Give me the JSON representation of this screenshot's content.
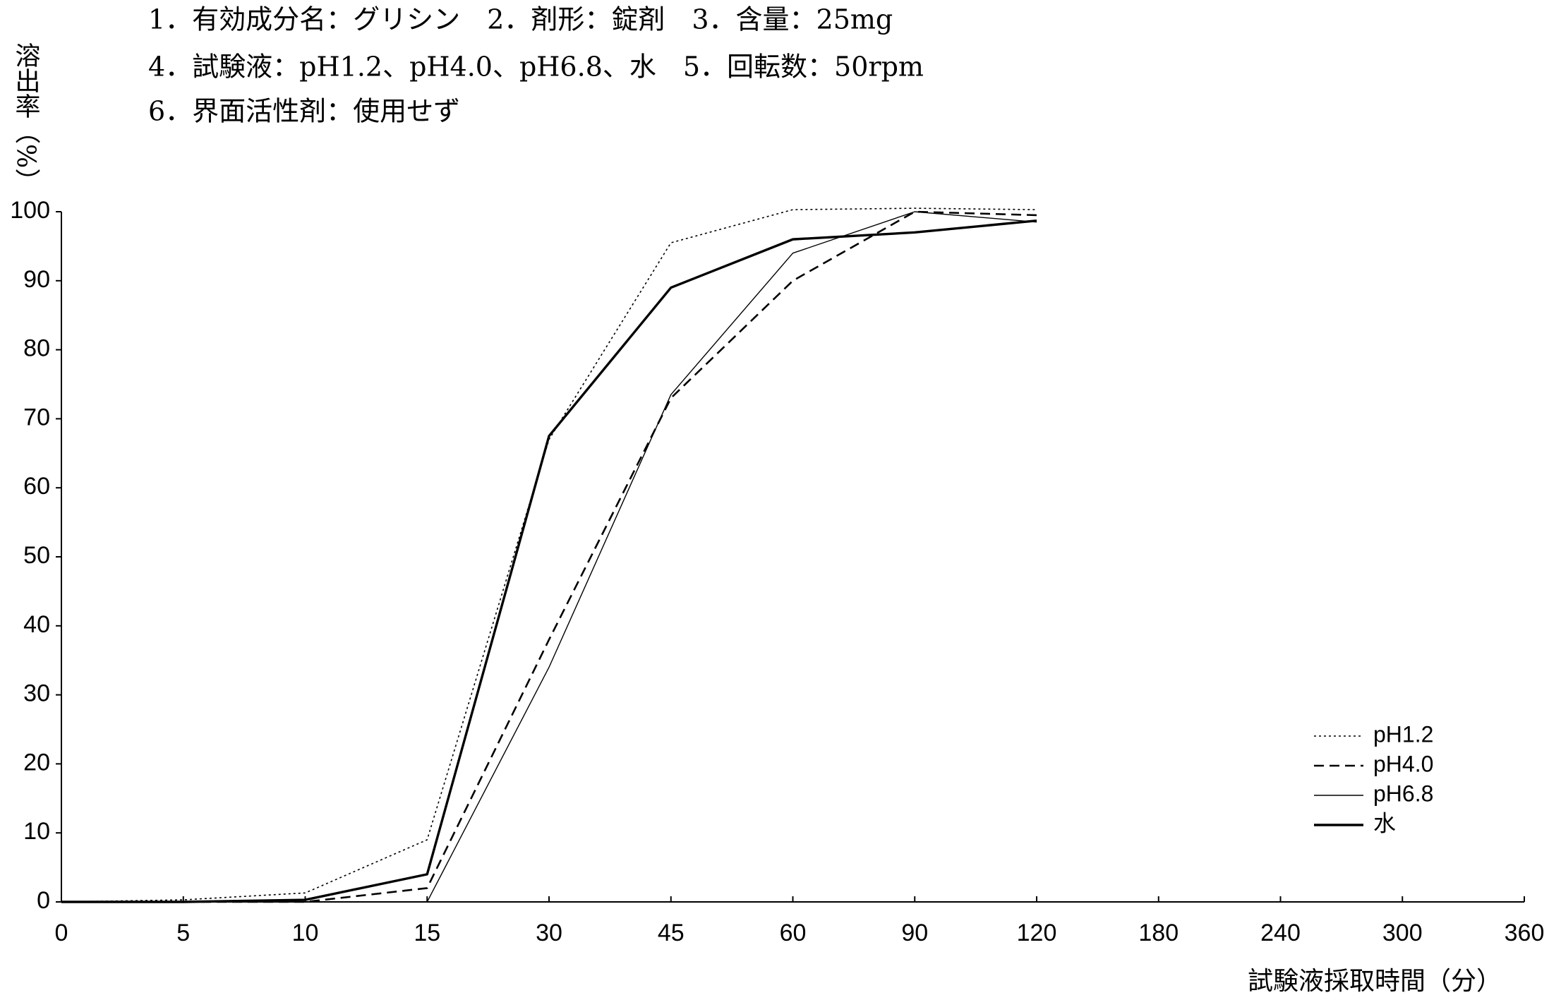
{
  "chart_data": {
    "type": "line",
    "notes": [
      "1．有効成分名：グリシン　2．剤形：錠剤　3．含量：25mg",
      "4．試験液：pH1.2、pH4.0、pH6.8、水　5．回転数：50rpm",
      "6．界面活性剤：使用せず"
    ],
    "y_label": "溶出率（%）",
    "x_label": "試験液採取時間（分）",
    "categories": [
      "0",
      "5",
      "10",
      "15",
      "30",
      "45",
      "60",
      "90",
      "120",
      "180",
      "240",
      "300",
      "360"
    ],
    "ylim": [
      0,
      100
    ],
    "yticks": [
      0,
      10,
      20,
      30,
      40,
      50,
      60,
      70,
      80,
      90,
      100
    ],
    "series": [
      {
        "name": "pH1.2",
        "color": "#000000",
        "line_style": "dotted",
        "values": [
          0,
          0.3,
          1.3,
          9,
          67,
          95.5,
          100.3,
          100.5,
          100.3,
          null,
          null,
          null,
          null
        ]
      },
      {
        "name": "pH4.0",
        "color": "#000000",
        "line_style": "dashed",
        "values": [
          0,
          0,
          0,
          2,
          38,
          73,
          90,
          100,
          99.5,
          null,
          null,
          null,
          null
        ]
      },
      {
        "name": "pH6.8",
        "color": "#000000",
        "line_style": "thin",
        "values": [
          0,
          0,
          0,
          0,
          34,
          73.5,
          94,
          100,
          98.5,
          null,
          null,
          null,
          null
        ]
      },
      {
        "name": "水",
        "color": "#000000",
        "line_style": "thick",
        "values": [
          0,
          0,
          0.3,
          4,
          67.5,
          89,
          96,
          97,
          98.7,
          null,
          null,
          null,
          null
        ]
      }
    ]
  }
}
